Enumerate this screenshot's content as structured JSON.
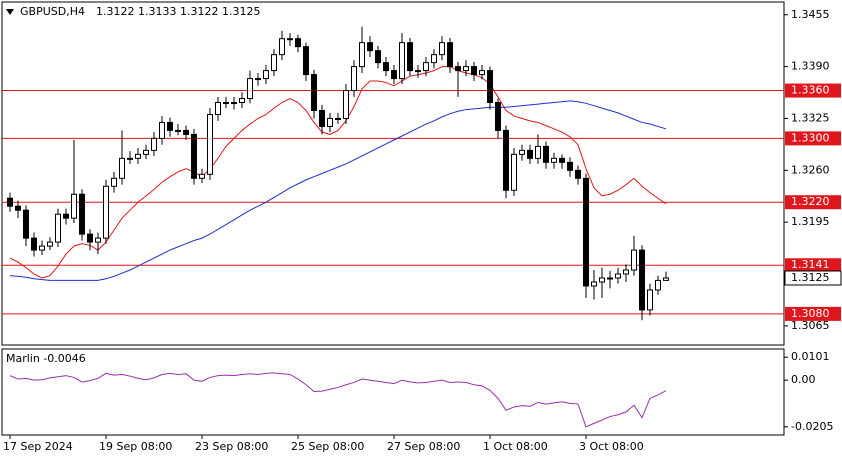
{
  "chart_data": [
    {
      "type": "candlestick",
      "title": "GBPUSD,H4",
      "subtitle": "1.3122 1.3133 1.3122 1.3125",
      "categories": [
        "17 Sep 2024",
        null,
        null,
        null,
        null,
        null,
        null,
        null,
        null,
        null,
        null,
        null,
        "19 Sep 08:00",
        null,
        null,
        null,
        null,
        null,
        null,
        null,
        null,
        null,
        null,
        null,
        "23 Sep 08:00",
        null,
        null,
        null,
        null,
        null,
        null,
        null,
        null,
        null,
        null,
        null,
        "25 Sep 08:00",
        null,
        null,
        null,
        null,
        null,
        null,
        null,
        null,
        null,
        null,
        null,
        "27 Sep 08:00",
        null,
        null,
        null,
        null,
        null,
        null,
        null,
        null,
        null,
        null,
        null,
        "1 Oct 08:00",
        null,
        null,
        null,
        null,
        null,
        null,
        null,
        null,
        null,
        null,
        null,
        "3 Oct 08:00",
        null,
        null,
        null,
        null,
        null,
        null,
        null,
        null,
        null,
        null
      ],
      "candles": [
        [
          1.3225,
          1.3232,
          1.3208,
          1.3215
        ],
        [
          1.3215,
          1.3222,
          1.32,
          1.321
        ],
        [
          1.321,
          1.3216,
          1.3165,
          1.3175
        ],
        [
          1.3175,
          1.3182,
          1.3152,
          1.316
        ],
        [
          1.316,
          1.3172,
          1.3154,
          1.3165
        ],
        [
          1.3165,
          1.3176,
          1.316,
          1.317
        ],
        [
          1.317,
          1.3212,
          1.3164,
          1.3205
        ],
        [
          1.3205,
          1.3212,
          1.3192,
          1.32
        ],
        [
          1.32,
          1.3298,
          1.3194,
          1.323
        ],
        [
          1.323,
          1.3236,
          1.3172,
          1.318
        ],
        [
          1.318,
          1.3186,
          1.316,
          1.317
        ],
        [
          1.317,
          1.3182,
          1.3155,
          1.3175
        ],
        [
          1.3175,
          1.3248,
          1.3168,
          1.324
        ],
        [
          1.324,
          1.3258,
          1.3232,
          1.325
        ],
        [
          1.325,
          1.331,
          1.3242,
          1.3275
        ],
        [
          1.3275,
          1.3284,
          1.3268,
          1.3275
        ],
        [
          1.3275,
          1.3288,
          1.3268,
          1.328
        ],
        [
          1.328,
          1.3292,
          1.3274,
          1.3285
        ],
        [
          1.3285,
          1.3308,
          1.3278,
          1.33
        ],
        [
          1.33,
          1.3328,
          1.3292,
          1.332
        ],
        [
          1.332,
          1.3326,
          1.3302,
          1.331
        ],
        [
          1.331,
          1.3318,
          1.3304,
          1.331
        ],
        [
          1.331,
          1.3316,
          1.3298,
          1.3305
        ],
        [
          1.3305,
          1.3312,
          1.3242,
          1.325
        ],
        [
          1.325,
          1.3262,
          1.3244,
          1.3255
        ],
        [
          1.3255,
          1.3338,
          1.3248,
          1.333
        ],
        [
          1.333,
          1.3352,
          1.3322,
          1.3345
        ],
        [
          1.3345,
          1.3352,
          1.3338,
          1.3345
        ],
        [
          1.3345,
          1.3352,
          1.3336,
          1.3345
        ],
        [
          1.3345,
          1.3358,
          1.3338,
          1.335
        ],
        [
          1.335,
          1.3385,
          1.3344,
          1.3375
        ],
        [
          1.3375,
          1.3382,
          1.3366,
          1.3375
        ],
        [
          1.3375,
          1.3392,
          1.3368,
          1.3385
        ],
        [
          1.3385,
          1.3412,
          1.3378,
          1.3405
        ],
        [
          1.3405,
          1.3435,
          1.3398,
          1.3425
        ],
        [
          1.3425,
          1.3432,
          1.3416,
          1.3425
        ],
        [
          1.3425,
          1.343,
          1.3408,
          1.3415
        ],
        [
          1.3415,
          1.342,
          1.3372,
          1.338
        ],
        [
          1.338,
          1.3386,
          1.3325,
          1.3335
        ],
        [
          1.3335,
          1.3342,
          1.3305,
          1.3315
        ],
        [
          1.3315,
          1.3332,
          1.3308,
          1.3325
        ],
        [
          1.3325,
          1.3332,
          1.3318,
          1.3325
        ],
        [
          1.3325,
          1.3368,
          1.3318,
          1.336
        ],
        [
          1.336,
          1.3398,
          1.3352,
          1.339
        ],
        [
          1.339,
          1.344,
          1.3382,
          1.342
        ],
        [
          1.342,
          1.3428,
          1.3402,
          1.341
        ],
        [
          1.341,
          1.3416,
          1.3388,
          1.3395
        ],
        [
          1.3395,
          1.3402,
          1.3378,
          1.3385
        ],
        [
          1.3385,
          1.3392,
          1.3368,
          1.3375
        ],
        [
          1.3375,
          1.3432,
          1.3368,
          1.342
        ],
        [
          1.342,
          1.3426,
          1.3378,
          1.3385
        ],
        [
          1.3385,
          1.3392,
          1.3376,
          1.3385
        ],
        [
          1.3385,
          1.3402,
          1.3378,
          1.3395
        ],
        [
          1.3395,
          1.3412,
          1.3388,
          1.3405
        ],
        [
          1.3405,
          1.3428,
          1.3398,
          1.342
        ],
        [
          1.342,
          1.3426,
          1.3382,
          1.339
        ],
        [
          1.339,
          1.3396,
          1.3352,
          1.3385
        ],
        [
          1.3385,
          1.3398,
          1.3378,
          1.339
        ],
        [
          1.339,
          1.3396,
          1.3372,
          1.338
        ],
        [
          1.338,
          1.3392,
          1.3374,
          1.3385
        ],
        [
          1.3385,
          1.339,
          1.3336,
          1.3345
        ],
        [
          1.3345,
          1.335,
          1.33,
          1.331
        ],
        [
          1.331,
          1.3316,
          1.3225,
          1.3235
        ],
        [
          1.3235,
          1.3288,
          1.3228,
          1.328
        ],
        [
          1.328,
          1.3292,
          1.3272,
          1.3285
        ],
        [
          1.3285,
          1.3292,
          1.3268,
          1.3275
        ],
        [
          1.3275,
          1.3305,
          1.3268,
          1.329
        ],
        [
          1.329,
          1.3296,
          1.3262,
          1.327
        ],
        [
          1.327,
          1.3282,
          1.3262,
          1.3275
        ],
        [
          1.3275,
          1.328,
          1.3262,
          1.327
        ],
        [
          1.327,
          1.3276,
          1.3252,
          1.326
        ],
        [
          1.326,
          1.3266,
          1.3242,
          1.325
        ],
        [
          1.325,
          1.3256,
          1.31,
          1.3115
        ],
        [
          1.3115,
          1.3135,
          1.3098,
          1.312
        ],
        [
          1.312,
          1.3138,
          1.31,
          1.3125
        ],
        [
          1.3125,
          1.3134,
          1.3112,
          1.3125
        ],
        [
          1.3125,
          1.3138,
          1.3118,
          1.313
        ],
        [
          1.313,
          1.3142,
          1.312,
          1.3135
        ],
        [
          1.3135,
          1.3178,
          1.3128,
          1.316
        ],
        [
          1.316,
          1.3166,
          1.3072,
          1.3085
        ],
        [
          1.3085,
          1.3118,
          1.3078,
          1.311
        ],
        [
          1.311,
          1.3128,
          1.3104,
          1.3122
        ],
        [
          1.3122,
          1.3133,
          1.3122,
          1.3125
        ]
      ],
      "series": [
        {
          "color": "#e0161c",
          "values": [
            1.315,
            1.3145,
            1.3138,
            1.313,
            1.3125,
            1.3128,
            1.314,
            1.3155,
            1.3165,
            1.3168,
            1.3166,
            1.316,
            1.317,
            1.3185,
            1.32,
            1.321,
            1.322,
            1.3228,
            1.3236,
            1.3245,
            1.3252,
            1.3258,
            1.3262,
            1.3258,
            1.3252,
            1.3262,
            1.3275,
            1.329,
            1.33,
            1.331,
            1.3318,
            1.3325,
            1.333,
            1.3338,
            1.3345,
            1.335,
            1.3345,
            1.3335,
            1.332,
            1.3308,
            1.3305,
            1.331,
            1.3322,
            1.334,
            1.3362,
            1.3372,
            1.3372,
            1.337,
            1.3366,
            1.3372,
            1.3378,
            1.338,
            1.3382,
            1.3385,
            1.339,
            1.339,
            1.3385,
            1.3382,
            1.338,
            1.3376,
            1.3368,
            1.3352,
            1.3335,
            1.3328,
            1.3325,
            1.3322,
            1.332,
            1.3316,
            1.3312,
            1.3308,
            1.3302,
            1.3292,
            1.3262,
            1.3238,
            1.3228,
            1.323,
            1.3235,
            1.3242,
            1.325,
            1.324,
            1.3232,
            1.3225,
            1.3218
          ]
        },
        {
          "color": "#1c30c8",
          "values": [
            1.3128,
            1.3127,
            1.3126,
            1.3124,
            1.3123,
            1.3122,
            1.3122,
            1.3122,
            1.3122,
            1.3122,
            1.3122,
            1.3122,
            1.3124,
            1.3127,
            1.3131,
            1.3135,
            1.314,
            1.3145,
            1.315,
            1.3155,
            1.316,
            1.3164,
            1.3168,
            1.3172,
            1.3175,
            1.318,
            1.3186,
            1.3192,
            1.3198,
            1.3204,
            1.321,
            1.3215,
            1.322,
            1.3226,
            1.3232,
            1.3238,
            1.3243,
            1.3248,
            1.3252,
            1.3256,
            1.326,
            1.3264,
            1.3268,
            1.3273,
            1.3278,
            1.3283,
            1.3288,
            1.3293,
            1.3298,
            1.3303,
            1.3308,
            1.3313,
            1.3318,
            1.3322,
            1.3327,
            1.3331,
            1.3334,
            1.3336,
            1.3337,
            1.3338,
            1.3339,
            1.3339,
            1.3339,
            1.334,
            1.3341,
            1.3342,
            1.3343,
            1.3344,
            1.3345,
            1.3346,
            1.3347,
            1.3346,
            1.3344,
            1.3341,
            1.3338,
            1.3335,
            1.3332,
            1.3328,
            1.3324,
            1.332,
            1.3318,
            1.3315,
            1.3312
          ]
        }
      ],
      "levels": [
        {
          "value": 1.336,
          "label": "1.3360"
        },
        {
          "value": 1.33,
          "label": "1.3300"
        },
        {
          "value": 1.322,
          "label": "1.3220"
        },
        {
          "value": 1.3141,
          "label": "1.3141"
        },
        {
          "value": 1.308,
          "label": "1.3080"
        }
      ],
      "level_color": "#e0161c",
      "last_price": {
        "value": 1.3125,
        "label": "1.3125"
      },
      "ylim": [
        1.3041,
        1.3471
      ],
      "yticks": [
        1.3455,
        {
          "value": 1.339,
          "label": "1.3390"
        },
        1.3325,
        {
          "value": 1.326,
          "label": "1.3260"
        },
        1.3195,
        {
          "value": 1.313,
          "label": "1.3130"
        },
        1.3065
      ]
    },
    {
      "type": "line",
      "title": "Marlin -0.0046",
      "series": [
        {
          "color": "#9b2fae",
          "values": [
            0.002,
            0.0005,
            0.0008,
            0.0,
            0.0002,
            0.001,
            0.0015,
            0.002,
            0.0012,
            -0.0008,
            -0.0002,
            0.0008,
            0.003,
            0.0022,
            0.0025,
            0.0018,
            0.0008,
            0.0002,
            0.001,
            0.0025,
            0.003,
            0.0025,
            0.0028,
            0.0,
            -0.0005,
            0.0012,
            0.002,
            0.0022,
            0.002,
            0.0025,
            0.0028,
            0.0025,
            0.003,
            0.0032,
            0.0028,
            0.0025,
            0.0005,
            -0.002,
            -0.005,
            -0.0048,
            -0.004,
            -0.0032,
            -0.002,
            -0.001,
            0.0005,
            0.0,
            -0.0005,
            -0.001,
            -0.0015,
            0.0,
            -0.0008,
            -0.0012,
            -0.001,
            -0.0005,
            0.0,
            -0.001,
            -0.0008,
            -0.001,
            -0.002,
            -0.0025,
            -0.0045,
            -0.008,
            -0.0132,
            -0.0118,
            -0.0112,
            -0.0115,
            -0.0098,
            -0.0105,
            -0.01,
            -0.0095,
            -0.0102,
            -0.0105,
            -0.0205,
            -0.019,
            -0.0175,
            -0.016,
            -0.0152,
            -0.014,
            -0.011,
            -0.0165,
            -0.008,
            -0.0065,
            -0.0046
          ]
        }
      ],
      "ylim": [
        -0.0241,
        0.0137
      ],
      "yticks": [
        0.0101,
        {
          "value": 0,
          "label": "0.00"
        },
        -0.0205
      ]
    }
  ]
}
